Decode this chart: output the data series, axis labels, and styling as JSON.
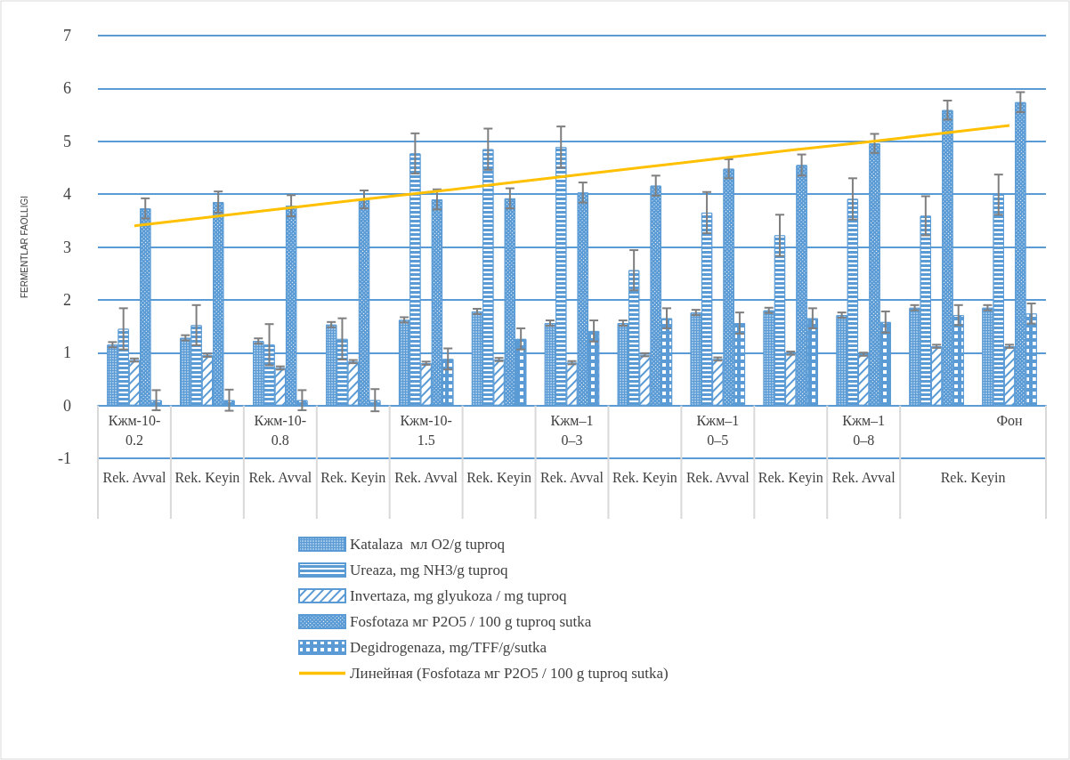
{
  "chart_data": {
    "type": "bar",
    "ylabel": "FERMENTLAR FAOLLIGI",
    "categories": [
      "Кжм-10-0.2",
      null,
      "Кжм-10-0.8",
      null,
      "Кжм-10-1.5",
      null,
      "Кжм–10–3",
      null,
      "Кжм–10–5",
      null,
      "Кжм–10–8",
      null,
      "Фон"
    ],
    "annotations": [
      "Rek. Avval",
      "Rek. Keyin",
      "Rek. Avval",
      "Rek. Keyin",
      "Rek. Avval",
      "Rek. Keyin",
      "Rek. Avval",
      "Rek. Keyin",
      "Rek. Avval",
      "Rek. Keyin",
      "Rek. Avval",
      "Rek. Keyin"
    ],
    "series": [
      {
        "name": "Katalaza  мл O2/g tuproq",
        "color": "#5b9bd5",
        "values": [
          1.15,
          1.28,
          1.22,
          1.53,
          1.62,
          1.78,
          1.56,
          1.56,
          1.76,
          1.8,
          1.71,
          1.85,
          1.85
        ],
        "errors": [
          0.05,
          0.05,
          0.05,
          0.05,
          0.05,
          0.05,
          0.05,
          0.05,
          0.05,
          0.05,
          0.05,
          0.05,
          0.05
        ]
      },
      {
        "name": "Ureaza, mg NH3/g tuproq",
        "color": "#5b9bd5",
        "values": [
          1.45,
          1.52,
          1.15,
          1.26,
          4.77,
          4.85,
          4.89,
          2.56,
          3.65,
          3.22,
          3.91,
          3.59,
          3.99
        ],
        "errors": [
          0.39,
          0.38,
          0.39,
          0.39,
          0.38,
          0.39,
          0.39,
          0.38,
          0.39,
          0.39,
          0.39,
          0.37,
          0.38
        ]
      },
      {
        "name": "Invertaza, mg glyukoza / mg tuproq",
        "color": "#5b9bd5",
        "values": [
          0.86,
          0.95,
          0.71,
          0.83,
          0.8,
          0.87,
          0.81,
          0.96,
          0.88,
          0.99,
          0.97,
          1.12,
          1.12
        ],
        "errors": [
          0.03,
          0.03,
          0.03,
          0.03,
          0.03,
          0.03,
          0.03,
          0.03,
          0.03,
          0.03,
          0.03,
          0.03,
          0.03
        ]
      },
      {
        "name": "Fosfotaza мг P2O5 / 100 g tuproq sutka",
        "color": "#5b9bd5",
        "values": [
          3.73,
          3.85,
          3.78,
          3.9,
          3.9,
          3.92,
          4.03,
          4.16,
          4.48,
          4.55,
          4.96,
          5.59,
          5.74
        ],
        "errors": [
          0.19,
          0.2,
          0.2,
          0.17,
          0.19,
          0.19,
          0.19,
          0.19,
          0.18,
          0.2,
          0.18,
          0.18,
          0.19
        ]
      },
      {
        "name": "Degidrogenaza, mg/TFF/g/sutka",
        "color": "#5b9bd5",
        "values": [
          0.1,
          0.1,
          0.1,
          0.1,
          0.88,
          1.26,
          1.41,
          1.65,
          1.56,
          1.65,
          1.58,
          1.71,
          1.74
        ],
        "errors": [
          0.19,
          0.2,
          0.19,
          0.21,
          0.2,
          0.2,
          0.2,
          0.19,
          0.2,
          0.19,
          0.2,
          0.19,
          0.19
        ]
      },
      {
        "name": "Линейная (Fosfotaza мг P2O5 / 100 g tuproq sutka)",
        "type": "line",
        "color": "#ffc000",
        "values": [
          3.4,
          3.56,
          3.72,
          3.88,
          4.03,
          4.19,
          4.35,
          4.51,
          4.67,
          4.83,
          4.98,
          5.14,
          5.3
        ]
      }
    ],
    "ylim": [
      -1,
      7
    ],
    "yticks": [
      -1,
      0,
      1,
      2,
      3,
      4,
      5,
      6,
      7
    ],
    "grid": "y",
    "legend": "bottom"
  }
}
